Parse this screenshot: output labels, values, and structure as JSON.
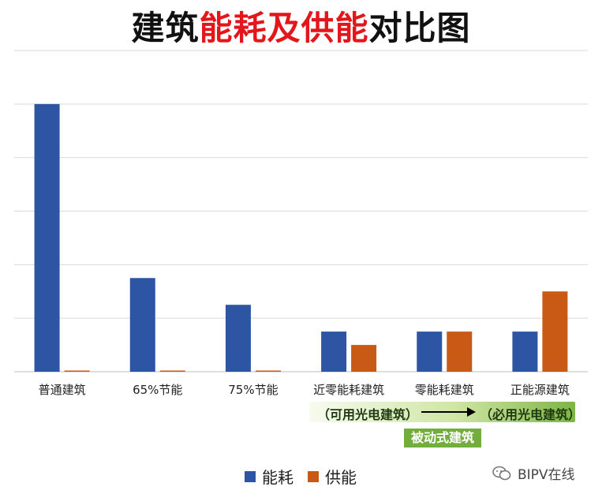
{
  "title": {
    "part1": "建筑",
    "part2": "能耗及供能",
    "part3": "对比图"
  },
  "chart_data": {
    "type": "bar",
    "categories": [
      "普通建筑",
      "65%节能",
      "75%节能",
      "近零能耗建筑",
      "零能耗建筑",
      "正能源建筑"
    ],
    "series": [
      {
        "name": "能耗",
        "color": "#2e55a4",
        "values": [
          100,
          35,
          25,
          15,
          15,
          15
        ]
      },
      {
        "name": "供能",
        "color": "#c85a16",
        "values": [
          0,
          0,
          0,
          10,
          15,
          30
        ]
      }
    ],
    "ylim": [
      0,
      120
    ],
    "gridline_values": [
      20,
      40,
      60,
      80,
      100,
      120
    ],
    "grid": true,
    "legend": "bottom"
  },
  "annotation": {
    "left": "（可用光电建筑）",
    "right": "（必用光电建筑）",
    "passive": "被动式建筑"
  },
  "watermark": "BIPV在线"
}
